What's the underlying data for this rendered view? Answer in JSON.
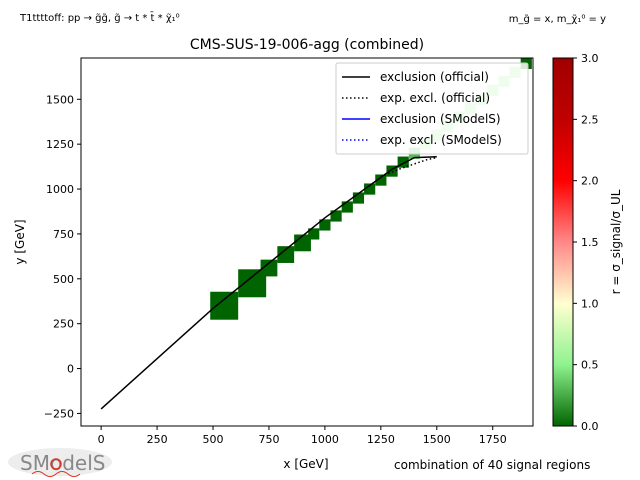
{
  "header": {
    "process_label": "T1ttttoff: pp → g̃g̃, g̃ → t * t̄ * χ̃₁⁰",
    "mass_label": "m_g̃ = x, m_χ̃₁⁰ = y"
  },
  "footer": {
    "signal_regions": "combination of 40 signal regions",
    "logo_text": "SModelS"
  },
  "chart_data": {
    "type": "scatter",
    "title": "CMS-SUS-19-006-agg (combined)",
    "xlabel": "x [GeV]",
    "ylabel": "y [GeV]",
    "xlim": [
      -90,
      1930
    ],
    "ylim": [
      -320,
      1730
    ],
    "xticks": [
      0,
      250,
      500,
      750,
      1000,
      1250,
      1500,
      1750
    ],
    "yticks": [
      -250,
      0,
      250,
      500,
      750,
      1000,
      1250,
      1500
    ],
    "legend_position": "top-right",
    "legend": [
      {
        "label": "exclusion (official)",
        "color": "#000000",
        "style": "solid"
      },
      {
        "label": "exp. excl. (official)",
        "color": "#000000",
        "style": "dotted"
      },
      {
        "label": "exclusion (SModelS)",
        "color": "#0000ff",
        "style": "solid"
      },
      {
        "label": "exp. excl. (SModelS)",
        "color": "#0000ff",
        "style": "dotted"
      }
    ],
    "exclusion_official": [
      [
        0,
        -225
      ],
      [
        500,
        335
      ],
      [
        1000,
        840
      ],
      [
        1300,
        1110
      ],
      [
        1400,
        1175
      ],
      [
        1500,
        1180
      ]
    ],
    "exp_exclusion_official": [
      [
        1250,
        1070
      ],
      [
        1330,
        1110
      ],
      [
        1400,
        1140
      ],
      [
        1460,
        1165
      ],
      [
        1500,
        1175
      ]
    ],
    "colorbar": {
      "label": "r = σ_signal/σ_UL",
      "range": [
        0,
        3
      ],
      "ticks": [
        0.0,
        0.5,
        1.0,
        1.5,
        2.0,
        2.5,
        3.0
      ],
      "colors": [
        "#006400",
        "#8ff28f",
        "#ffffd0",
        "#ff8888",
        "#ff0000",
        "#c00000",
        "#a00000"
      ]
    },
    "points": [
      {
        "x": 550,
        "y": 350,
        "r": 0.0
      },
      {
        "x": 675,
        "y": 475,
        "r": 0.0
      },
      {
        "x": 750,
        "y": 560,
        "r": 0.0
      },
      {
        "x": 825,
        "y": 635,
        "r": 0.0
      },
      {
        "x": 900,
        "y": 700,
        "r": 0.0
      },
      {
        "x": 950,
        "y": 750,
        "r": 0.0
      },
      {
        "x": 1000,
        "y": 800,
        "r": 0.0
      },
      {
        "x": 1050,
        "y": 850,
        "r": 0.0
      },
      {
        "x": 1100,
        "y": 900,
        "r": 0.0
      },
      {
        "x": 1150,
        "y": 950,
        "r": 0.0
      },
      {
        "x": 1200,
        "y": 1000,
        "r": 0.0
      },
      {
        "x": 1250,
        "y": 1050,
        "r": 0.0
      },
      {
        "x": 1300,
        "y": 1100,
        "r": 0.0
      },
      {
        "x": 1350,
        "y": 1150,
        "r": 0.0
      },
      {
        "x": 1400,
        "y": 1200,
        "r": 0.3
      },
      {
        "x": 1450,
        "y": 1250,
        "r": 0.5
      },
      {
        "x": 1500,
        "y": 1300,
        "r": 0.5
      },
      {
        "x": 1550,
        "y": 1350,
        "r": 0.5
      },
      {
        "x": 1600,
        "y": 1400,
        "r": 0.5
      },
      {
        "x": 1650,
        "y": 1450,
        "r": 0.5
      },
      {
        "x": 1700,
        "y": 1500,
        "r": 0.5
      },
      {
        "x": 1750,
        "y": 1550,
        "r": 0.5
      },
      {
        "x": 1800,
        "y": 1600,
        "r": 0.5
      },
      {
        "x": 1850,
        "y": 1650,
        "r": 0.5
      },
      {
        "x": 1900,
        "y": 1700,
        "r": 0.0
      }
    ]
  }
}
